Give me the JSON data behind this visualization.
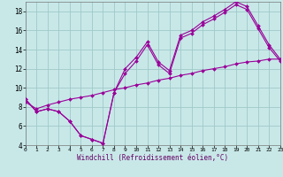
{
  "bg_color": "#c8e8e8",
  "grid_color": "#a0c8c8",
  "line_color": "#990099",
  "xlabel": "Windchill (Refroidissement éolien,°C)",
  "xlim": [
    0,
    23
  ],
  "ylim": [
    4,
    19
  ],
  "xticks": [
    0,
    1,
    2,
    3,
    4,
    5,
    6,
    7,
    8,
    9,
    10,
    11,
    12,
    13,
    14,
    15,
    16,
    17,
    18,
    19,
    20,
    21,
    22,
    23
  ],
  "yticks": [
    4,
    6,
    8,
    10,
    12,
    14,
    16,
    18
  ],
  "curve1_x": [
    0,
    1,
    2,
    3,
    4,
    5,
    6,
    7,
    8,
    9,
    10,
    11,
    12,
    13,
    14,
    15,
    16,
    17,
    18,
    19,
    20,
    21,
    22,
    23
  ],
  "curve1_y": [
    8.8,
    7.5,
    7.8,
    7.5,
    6.5,
    5.0,
    4.6,
    4.2,
    9.5,
    12.0,
    13.2,
    14.8,
    12.7,
    11.8,
    15.5,
    16.0,
    16.9,
    17.5,
    18.2,
    19.0,
    18.5,
    16.5,
    14.5,
    13.0
  ],
  "curve2_x": [
    0,
    1,
    2,
    3,
    4,
    5,
    6,
    7,
    8,
    9,
    10,
    11,
    12,
    13,
    14,
    15,
    16,
    17,
    18,
    19,
    20,
    21,
    22,
    23
  ],
  "curve2_y": [
    8.8,
    7.5,
    7.8,
    7.5,
    6.5,
    5.0,
    4.6,
    4.2,
    9.5,
    11.5,
    12.8,
    14.5,
    12.4,
    11.5,
    15.2,
    15.7,
    16.6,
    17.2,
    17.9,
    18.7,
    18.2,
    16.2,
    14.2,
    12.8
  ],
  "curve3_x": [
    0,
    1,
    2,
    3,
    4,
    5,
    6,
    7,
    8,
    9,
    10,
    11,
    12,
    13,
    14,
    15,
    16,
    17,
    18,
    19,
    20,
    21,
    22,
    23
  ],
  "curve3_y": [
    8.5,
    7.8,
    8.2,
    8.5,
    8.8,
    9.0,
    9.2,
    9.5,
    9.8,
    10.0,
    10.3,
    10.5,
    10.8,
    11.0,
    11.3,
    11.5,
    11.8,
    12.0,
    12.2,
    12.5,
    12.7,
    12.8,
    13.0,
    13.0
  ],
  "xlabel_color": "#660066",
  "xlabel_fontsize": 5.5,
  "tick_fontsize_x": 4.5,
  "tick_fontsize_y": 5.5,
  "linewidth": 0.8,
  "markersize": 2.0
}
